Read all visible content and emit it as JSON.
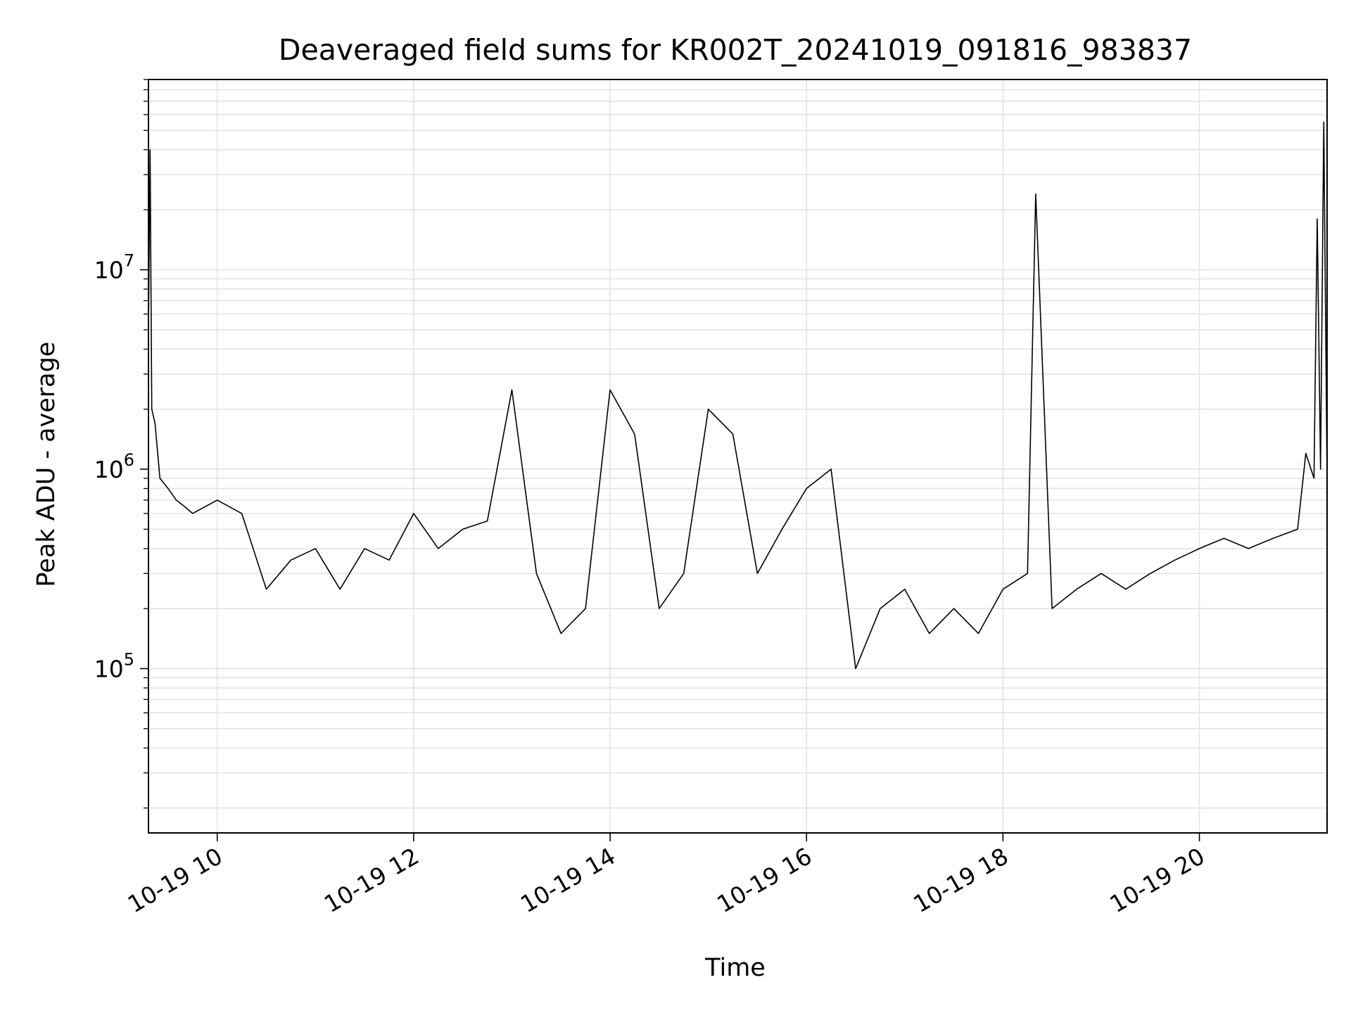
{
  "chart_data": {
    "type": "line",
    "title": "Deaveraged field sums for KR002T_20241019_091816_983837",
    "xlabel": "Time",
    "ylabel": "Peak ADU - average",
    "yscale": "log",
    "xlim": [
      "2024-10-19T09:18",
      "2024-10-19T21:18"
    ],
    "ylim": [
      15000,
      90000000
    ],
    "grid": true,
    "x_ticks": [
      {
        "value": "2024-10-19T10:00",
        "label": "10-19 10"
      },
      {
        "value": "2024-10-19T12:00",
        "label": "10-19 12"
      },
      {
        "value": "2024-10-19T14:00",
        "label": "10-19 14"
      },
      {
        "value": "2024-10-19T16:00",
        "label": "10-19 16"
      },
      {
        "value": "2024-10-19T18:00",
        "label": "10-19 18"
      },
      {
        "value": "2024-10-19T20:00",
        "label": "10-19 20"
      }
    ],
    "y_ticks": [
      {
        "value": 100000,
        "base": "10",
        "exp": "5"
      },
      {
        "value": 1000000,
        "base": "10",
        "exp": "6"
      },
      {
        "value": 10000000,
        "base": "10",
        "exp": "7"
      }
    ],
    "line_color": "#000000",
    "series": [
      {
        "x": [
          "2024-10-19T09:18",
          "2024-10-19T09:19",
          "2024-10-19T09:20",
          "2024-10-19T09:22",
          "2024-10-19T09:25",
          "2024-10-19T09:30",
          "2024-10-19T09:35",
          "2024-10-19T09:40",
          "2024-10-19T09:45",
          "2024-10-19T10:00",
          "2024-10-19T10:15",
          "2024-10-19T10:30",
          "2024-10-19T10:45",
          "2024-10-19T11:00",
          "2024-10-19T11:15",
          "2024-10-19T11:30",
          "2024-10-19T11:45",
          "2024-10-19T12:00",
          "2024-10-19T12:15",
          "2024-10-19T12:30",
          "2024-10-19T12:45",
          "2024-10-19T13:00",
          "2024-10-19T13:15",
          "2024-10-19T13:30",
          "2024-10-19T13:45",
          "2024-10-19T14:00",
          "2024-10-19T14:15",
          "2024-10-19T14:30",
          "2024-10-19T14:45",
          "2024-10-19T15:00",
          "2024-10-19T15:15",
          "2024-10-19T15:30",
          "2024-10-19T15:45",
          "2024-10-19T16:00",
          "2024-10-19T16:15",
          "2024-10-19T16:30",
          "2024-10-19T16:45",
          "2024-10-19T17:00",
          "2024-10-19T17:15",
          "2024-10-19T17:30",
          "2024-10-19T17:45",
          "2024-10-19T18:00",
          "2024-10-19T18:15",
          "2024-10-19T18:20",
          "2024-10-19T18:30",
          "2024-10-19T18:45",
          "2024-10-19T19:00",
          "2024-10-19T19:15",
          "2024-10-19T19:30",
          "2024-10-19T19:45",
          "2024-10-19T20:00",
          "2024-10-19T20:15",
          "2024-10-19T20:30",
          "2024-10-19T20:45",
          "2024-10-19T21:00",
          "2024-10-19T21:05",
          "2024-10-19T21:10",
          "2024-10-19T21:12",
          "2024-10-19T21:14",
          "2024-10-19T21:16",
          "2024-10-19T21:18"
        ],
        "y": [
          5000000,
          40000000,
          2000000,
          1700000,
          900000,
          800000,
          700000,
          650000,
          600000,
          700000,
          600000,
          250000,
          350000,
          400000,
          250000,
          400000,
          350000,
          600000,
          400000,
          500000,
          550000,
          2500000,
          300000,
          150000,
          200000,
          2500000,
          1500000,
          200000,
          300000,
          2000000,
          1500000,
          300000,
          500000,
          800000,
          1000000,
          100000,
          200000,
          250000,
          150000,
          200000,
          150000,
          250000,
          300000,
          24000000,
          200000,
          250000,
          300000,
          250000,
          300000,
          350000,
          400000,
          450000,
          400000,
          450000,
          500000,
          1200000,
          900000,
          18000000,
          1000000,
          55000000,
          900000
        ]
      }
    ]
  }
}
